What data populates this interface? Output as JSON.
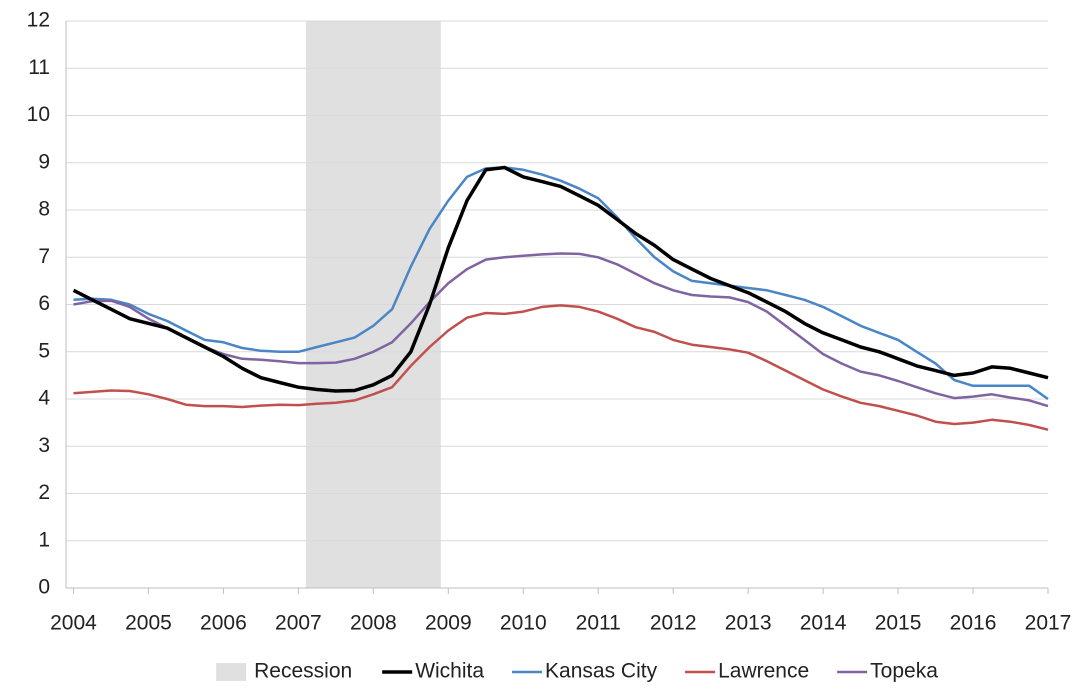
{
  "chart_data": {
    "type": "line",
    "x": [
      2004,
      2004.25,
      2004.5,
      2004.75,
      2005,
      2005.25,
      2005.5,
      2005.75,
      2006,
      2006.25,
      2006.5,
      2006.75,
      2007,
      2007.25,
      2007.5,
      2007.75,
      2008,
      2008.25,
      2008.5,
      2008.75,
      2009,
      2009.25,
      2009.5,
      2009.75,
      2010,
      2010.25,
      2010.5,
      2010.75,
      2011,
      2011.25,
      2011.5,
      2011.75,
      2012,
      2012.25,
      2012.5,
      2012.75,
      2013,
      2013.25,
      2013.5,
      2013.75,
      2014,
      2014.25,
      2014.5,
      2014.75,
      2015,
      2015.25,
      2015.5,
      2015.75,
      2016,
      2016.25,
      2016.5,
      2016.75,
      2017
    ],
    "shaded_regions": [
      {
        "name": "Recession",
        "start": 2007.1,
        "end": 2008.9,
        "color": "#e0e0e0"
      }
    ],
    "series": [
      {
        "name": "Wichita",
        "color": "#000000",
        "values": [
          6.3,
          6.1,
          5.9,
          5.7,
          5.6,
          5.5,
          5.3,
          5.1,
          4.9,
          4.65,
          4.45,
          4.35,
          4.25,
          4.2,
          4.17,
          4.18,
          4.3,
          4.5,
          5.0,
          6.0,
          7.2,
          8.2,
          8.85,
          8.9,
          8.7,
          8.6,
          8.5,
          8.3,
          8.1,
          7.8,
          7.5,
          7.25,
          6.95,
          6.75,
          6.55,
          6.4,
          6.25,
          6.05,
          5.85,
          5.6,
          5.4,
          5.25,
          5.1,
          5.0,
          4.85,
          4.7,
          4.6,
          4.5,
          4.55,
          4.68,
          4.65,
          4.55,
          4.45
        ]
      },
      {
        "name": "Kansas City",
        "color": "#4a86c5",
        "values": [
          6.1,
          6.12,
          6.1,
          6.0,
          5.8,
          5.65,
          5.45,
          5.25,
          5.2,
          5.08,
          5.02,
          5.0,
          5.0,
          5.1,
          5.2,
          5.3,
          5.55,
          5.9,
          6.8,
          7.6,
          8.2,
          8.7,
          8.88,
          8.9,
          8.85,
          8.75,
          8.62,
          8.45,
          8.25,
          7.85,
          7.4,
          7.0,
          6.7,
          6.5,
          6.45,
          6.4,
          6.35,
          6.3,
          6.2,
          6.1,
          5.95,
          5.75,
          5.55,
          5.4,
          5.25,
          5.0,
          4.75,
          4.4,
          4.28,
          4.28,
          4.28,
          4.28,
          4.0
        ]
      },
      {
        "name": "Lawrence",
        "color": "#c0504d",
        "values": [
          4.12,
          4.15,
          4.18,
          4.17,
          4.1,
          4.0,
          3.88,
          3.85,
          3.85,
          3.83,
          3.86,
          3.88,
          3.87,
          3.9,
          3.92,
          3.97,
          4.1,
          4.25,
          4.7,
          5.1,
          5.45,
          5.72,
          5.82,
          5.8,
          5.85,
          5.95,
          5.98,
          5.95,
          5.85,
          5.7,
          5.52,
          5.42,
          5.25,
          5.15,
          5.1,
          5.05,
          4.98,
          4.8,
          4.6,
          4.4,
          4.2,
          4.05,
          3.92,
          3.85,
          3.75,
          3.65,
          3.52,
          3.47,
          3.5,
          3.56,
          3.52,
          3.45,
          3.35
        ]
      },
      {
        "name": "Topeka",
        "color": "#8064a2",
        "values": [
          6.0,
          6.07,
          6.08,
          5.95,
          5.7,
          5.5,
          5.3,
          5.1,
          4.95,
          4.85,
          4.83,
          4.8,
          4.76,
          4.76,
          4.77,
          4.85,
          5.0,
          5.2,
          5.6,
          6.05,
          6.45,
          6.75,
          6.95,
          7.0,
          7.03,
          7.06,
          7.08,
          7.07,
          7.0,
          6.85,
          6.65,
          6.45,
          6.3,
          6.2,
          6.17,
          6.15,
          6.05,
          5.85,
          5.55,
          5.25,
          4.95,
          4.75,
          4.58,
          4.5,
          4.38,
          4.25,
          4.12,
          4.02,
          4.05,
          4.1,
          4.03,
          3.97,
          3.85
        ]
      }
    ],
    "xlim": [
      2003.9,
      2017
    ],
    "xticks": [
      2004,
      2005,
      2006,
      2007,
      2008,
      2009,
      2010,
      2011,
      2012,
      2013,
      2014,
      2015,
      2016,
      2017
    ],
    "ylim": [
      0,
      12
    ],
    "yticks": [
      0,
      1,
      2,
      3,
      4,
      5,
      6,
      7,
      8,
      9,
      10,
      11,
      12
    ],
    "grid": true,
    "legend": "bottom"
  }
}
